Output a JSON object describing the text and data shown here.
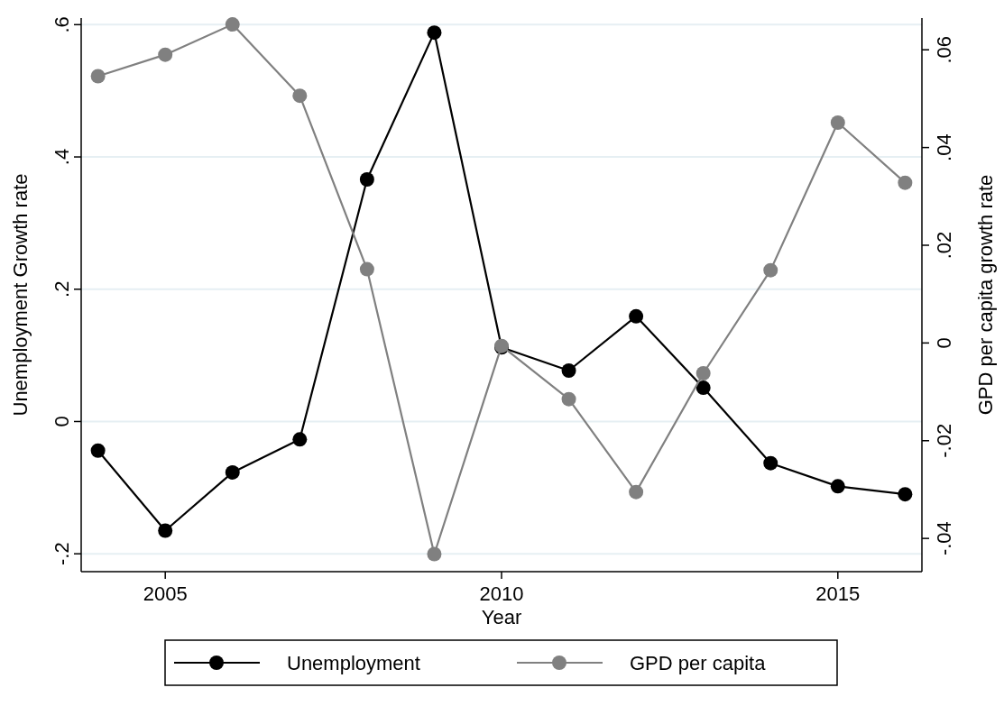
{
  "chart_data": {
    "type": "line",
    "xlabel": "Year",
    "ylabel": "Unemployment Growth rate",
    "y2label": "GPD per capita growth rate",
    "x": [
      2004,
      2005,
      2006,
      2007,
      2008,
      2009,
      2010,
      2011,
      2012,
      2013,
      2014,
      2015,
      2016
    ],
    "series": [
      {
        "name": "Unemployment",
        "color": "#000000",
        "values": [
          -0.044,
          -0.165,
          -0.077,
          -0.027,
          0.366,
          0.588,
          0.112,
          0.077,
          0.159,
          0.051,
          -0.063,
          -0.098,
          -0.11
        ]
      },
      {
        "name": "GPD per capita",
        "color": "#808080",
        "axis": "y2",
        "values": [
          0.0546,
          0.059,
          0.0652,
          0.0506,
          0.0151,
          -0.0432,
          -0.0006,
          -0.0115,
          -0.0305,
          -0.0062,
          0.0149,
          0.0451,
          0.0328
        ]
      }
    ],
    "xlim": [
      2003.75,
      2016.25
    ],
    "xticks": [
      2005,
      2010,
      2015
    ],
    "ylim": [
      -0.227,
      0.61
    ],
    "yticks": [
      {
        "value": -0.2,
        "label": "-.2"
      },
      0,
      {
        "value": 0.2,
        "label": ".2"
      },
      {
        "value": 0.4,
        "label": ".4"
      },
      {
        "value": 0.6,
        "label": ".6"
      }
    ],
    "y2lim": [
      -0.0468,
      0.0665
    ],
    "y2ticks": [
      {
        "value": -0.04,
        "label": "-.04"
      },
      {
        "value": -0.02,
        "label": "-.02"
      },
      0,
      {
        "value": 0.02,
        "label": ".02"
      },
      {
        "value": 0.04,
        "label": ".04"
      },
      {
        "value": 0.06,
        "label": ".06"
      }
    ],
    "grid": "y",
    "legend": "bottom",
    "marker": "circle",
    "line_style": "solid"
  }
}
